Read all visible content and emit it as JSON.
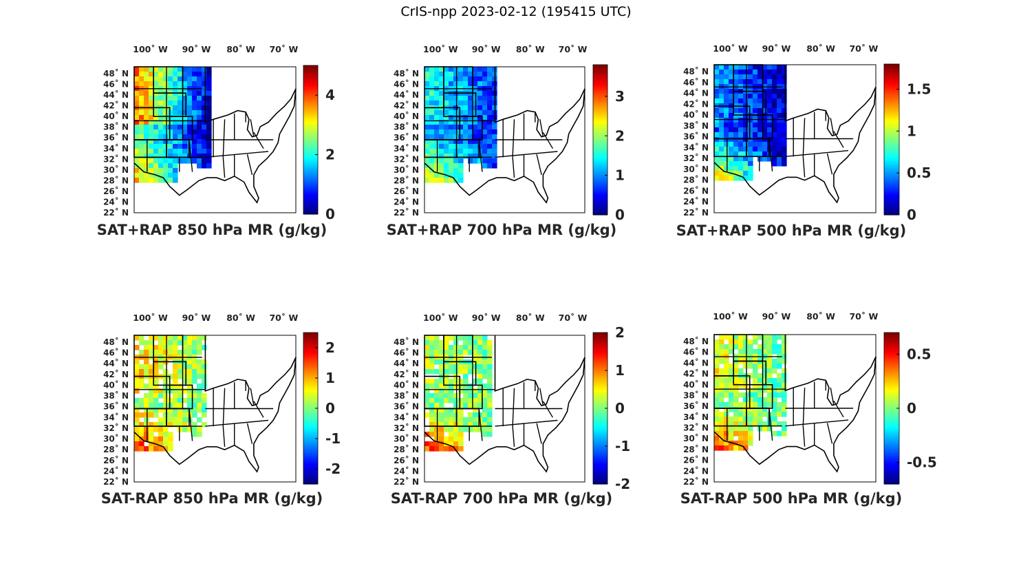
{
  "title": "CrIS-npp 2023-02-12 (195415 UTC)",
  "lon_labels": [
    "100˚ W",
    "90˚ W",
    "80˚ W",
    "70˚ W"
  ],
  "lat_labels": [
    "48˚ N",
    "46˚ N",
    "44˚ N",
    "42˚ N",
    "40˚ N",
    "38˚ N",
    "36˚ N",
    "34˚ N",
    "32˚ N",
    "30˚ N",
    "28˚ N",
    "26˚ N",
    "24˚ N",
    "22˚ N"
  ],
  "colormap": "jet",
  "panels": [
    {
      "id": "sat-rap-sum-850",
      "title": "SAT+RAP 850 hPa MR (g/kg)",
      "clim": [
        0,
        5
      ],
      "ticks": [
        "0",
        "2",
        "4"
      ],
      "tick_values": [
        0,
        2,
        4
      ]
    },
    {
      "id": "sat-rap-sum-700",
      "title": "SAT+RAP 700 hPa MR (g/kg)",
      "clim": [
        0,
        3.8
      ],
      "ticks": [
        "0",
        "1",
        "2",
        "3"
      ],
      "tick_values": [
        0,
        1,
        2,
        3
      ]
    },
    {
      "id": "sat-rap-sum-500",
      "title": "SAT+RAP 500 hPa MR (g/kg)",
      "clim": [
        0,
        1.8
      ],
      "ticks": [
        "0",
        "0.5",
        "1",
        "1.5"
      ],
      "tick_values": [
        0,
        0.5,
        1,
        1.5
      ]
    },
    {
      "id": "sat-rap-diff-850",
      "title": "SAT-RAP 850 hPa MR (g/kg)",
      "clim": [
        -2.5,
        2.5
      ],
      "ticks": [
        "-2",
        "-1",
        "0",
        "1",
        "2"
      ],
      "tick_values": [
        -2,
        -1,
        0,
        1,
        2
      ]
    },
    {
      "id": "sat-rap-diff-700",
      "title": "SAT-RAP 700 hPa MR (g/kg)",
      "clim": [
        -2,
        2
      ],
      "ticks": [
        "-2",
        "-1",
        "0",
        "1",
        "2"
      ],
      "tick_values": [
        -2,
        -1,
        0,
        1,
        2
      ]
    },
    {
      "id": "sat-rap-diff-500",
      "title": "SAT-RAP 500 hPa MR (g/kg)",
      "clim": [
        -0.7,
        0.7
      ],
      "ticks": [
        "-0.5",
        "0",
        "0.5"
      ],
      "tick_values": [
        -0.5,
        0,
        0.5
      ]
    }
  ]
}
